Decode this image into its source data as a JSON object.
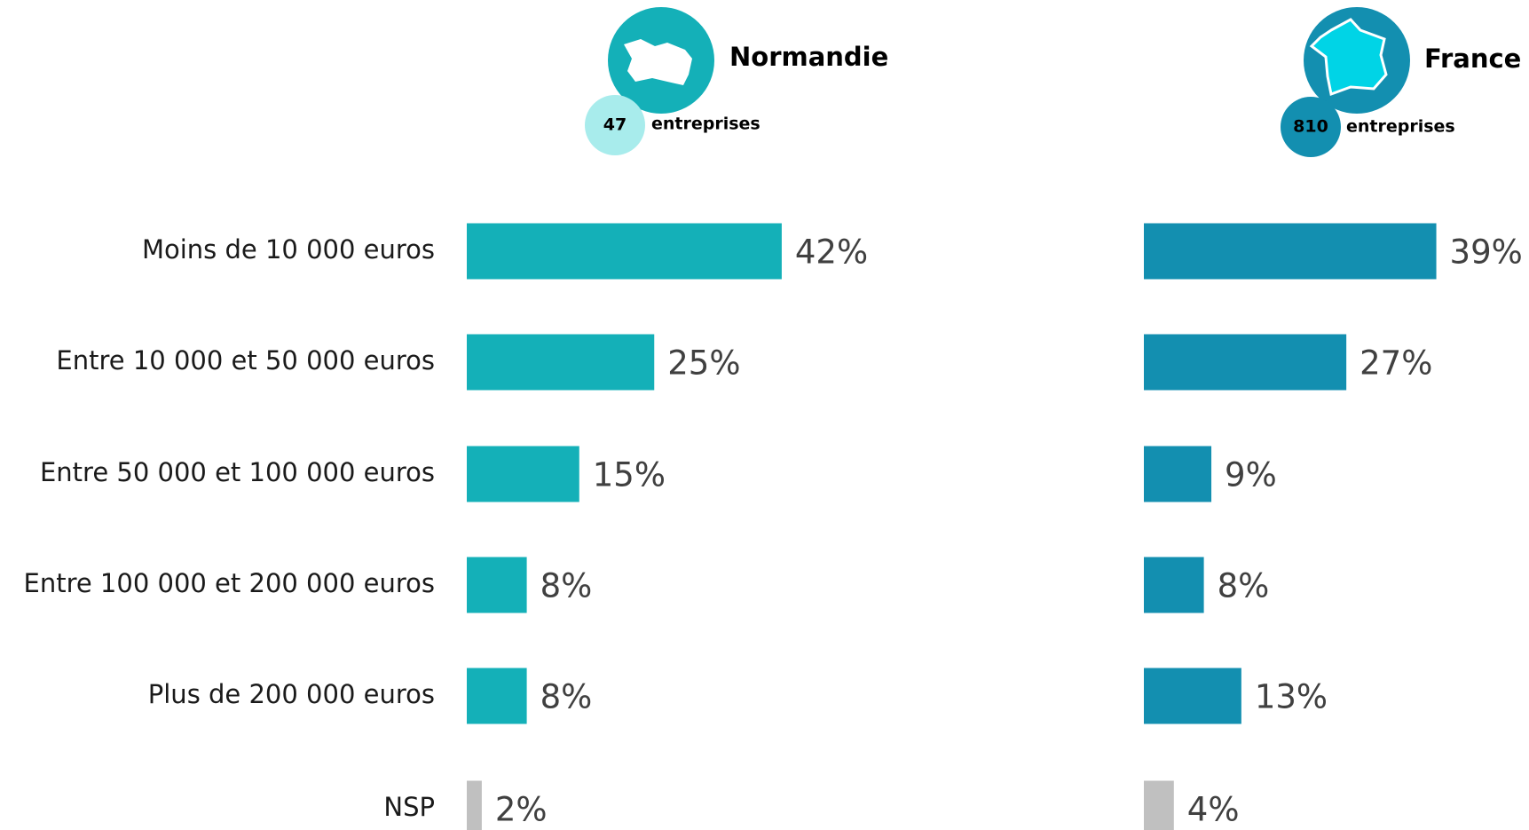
{
  "chart_data": {
    "type": "bar",
    "orientation": "horizontal",
    "categories": [
      "Moins de 10 000 euros",
      "Entre 10 000 et 50 000 euros",
      "Entre 50 000 et 100 000 euros",
      "Entre 100 000 et 200 000 euros",
      "Plus de 200 000 euros",
      "NSP"
    ],
    "series": [
      {
        "name": "Normandie",
        "count": 47,
        "count_label": "entreprises",
        "color": "#14b0b8",
        "colors": [
          "#14b0b8",
          "#14b0b8",
          "#14b0b8",
          "#14b0b8",
          "#14b0b8",
          "#c0c0c0"
        ],
        "values": [
          42,
          25,
          15,
          8,
          8,
          2
        ],
        "value_labels": [
          "42%",
          "25%",
          "15%",
          "8%",
          "8%",
          "2%"
        ]
      },
      {
        "name": "France",
        "count": 810,
        "count_label": "entreprises",
        "color": "#138fb0",
        "colors": [
          "#138fb0",
          "#138fb0",
          "#138fb0",
          "#138fb0",
          "#138fb0",
          "#c0c0c0"
        ],
        "values": [
          39,
          27,
          9,
          8,
          13,
          4
        ],
        "value_labels": [
          "39%",
          "27%",
          "9%",
          "8%",
          "13%",
          "4%"
        ]
      }
    ]
  }
}
